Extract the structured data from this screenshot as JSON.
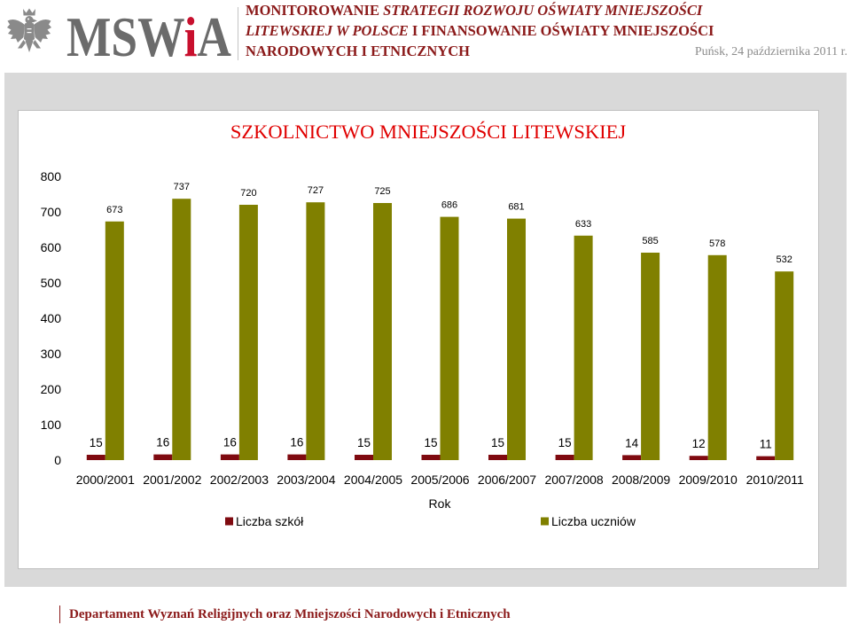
{
  "colors": {
    "header_text": "#8b1a1a",
    "date_text": "#8c8c8c",
    "panel_background": "#d9d9d9",
    "chart_title": "#e00000",
    "footer_text": "#8b1a1a",
    "logo_grey": "#6b6b6b",
    "logo_red": "#c8102e"
  },
  "header": {
    "emblem_icon": "polish-eagle-icon",
    "logo": {
      "part1": "MSW",
      "part2": "i",
      "part3": "A"
    },
    "title_line1_plain": "MONITOROWANIE",
    "title_line1_italic": "STRATEGII ROZWOJU OŚWIATY MNIEJSZOŚCI",
    "title_line2_italic": "LITEWSKIEJ W POLSCE",
    "title_line2_plain": "I FINANSOWANIE OŚWIATY MNIEJSZOŚCI",
    "title_line3": "NARODOWYCH I ETNICZNYCH",
    "date": "Puńsk, 24 października 2011 r."
  },
  "chart_data": {
    "type": "bar",
    "title": "SZKOLNICTWO MNIEJSZOŚCI LITEWSKIEJ",
    "xlabel": "Rok",
    "categories": [
      "2000/2001",
      "2001/2002",
      "2002/2003",
      "2003/2004",
      "2004/2005",
      "2005/2006",
      "2006/2007",
      "2007/2008",
      "2008/2009",
      "2009/2010",
      "2010/2011"
    ],
    "series": [
      {
        "name": "Liczba szkół",
        "color": "#7f0a10",
        "values": [
          15,
          16,
          16,
          16,
          15,
          15,
          15,
          15,
          14,
          12,
          11
        ]
      },
      {
        "name": "Liczba uczniów",
        "color": "#808000",
        "values": [
          673,
          737,
          720,
          727,
          725,
          686,
          681,
          633,
          585,
          578,
          532
        ]
      }
    ],
    "ylim": [
      0,
      800
    ],
    "yticks": [
      0,
      100,
      200,
      300,
      400,
      500,
      600,
      700,
      800
    ],
    "grid": false,
    "legend_position": "bottom"
  },
  "footer": {
    "text": "Departament Wyznań Religijnych oraz Mniejszości Narodowych i Etnicznych"
  }
}
